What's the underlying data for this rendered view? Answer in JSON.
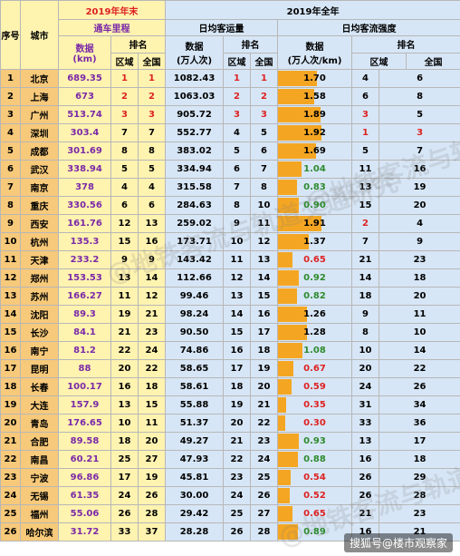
{
  "headers": {
    "idx": "序号",
    "city": "城市",
    "group_2019_end": "2019年年末",
    "mileage": "通车里程",
    "mileage_data": "数据\n(km)",
    "rank": "排名",
    "region": "区域",
    "nation": "全国",
    "group_2019_full": "2019年全年",
    "daily_flow": "日均客运量",
    "flow_data": "数据\n(万人次)",
    "density": "日均客流强度",
    "density_data": "数据\n(万人次/km)"
  },
  "rows": [
    {
      "idx": "1",
      "city": "北京",
      "mileage": "689.35",
      "mr": "1",
      "mn": "1",
      "flow": "1082.43",
      "fr": "1",
      "fn": "1",
      "dens": "1.70",
      "dens_num": 1.7,
      "dr": "4",
      "dn": "6"
    },
    {
      "idx": "2",
      "city": "上海",
      "mileage": "673",
      "mr": "2",
      "mn": "2",
      "flow": "1063.03",
      "fr": "2",
      "fn": "2",
      "dens": "1.58",
      "dens_num": 1.58,
      "dr": "6",
      "dn": "8"
    },
    {
      "idx": "3",
      "city": "广州",
      "mileage": "513.74",
      "mr": "3",
      "mn": "3",
      "flow": "905.72",
      "fr": "3",
      "fn": "3",
      "dens": "1.89",
      "dens_num": 1.89,
      "dr": "3",
      "dn": "5"
    },
    {
      "idx": "4",
      "city": "深圳",
      "mileage": "303.4",
      "mr": "7",
      "mn": "7",
      "flow": "552.77",
      "fr": "4",
      "fn": "5",
      "dens": "1.92",
      "dens_num": 1.92,
      "dr": "1",
      "dn": "3"
    },
    {
      "idx": "5",
      "city": "成都",
      "mileage": "301.69",
      "mr": "8",
      "mn": "8",
      "flow": "383.02",
      "fr": "5",
      "fn": "6",
      "dens": "1.69",
      "dens_num": 1.69,
      "dr": "5",
      "dn": "7"
    },
    {
      "idx": "6",
      "city": "武汉",
      "mileage": "338.94",
      "mr": "5",
      "mn": "5",
      "flow": "334.94",
      "fr": "6",
      "fn": "7",
      "dens": "1.04",
      "dens_num": 1.04,
      "dr": "11",
      "dn": "16"
    },
    {
      "idx": "7",
      "city": "南京",
      "mileage": "378",
      "mr": "4",
      "mn": "4",
      "flow": "315.58",
      "fr": "7",
      "fn": "8",
      "dens": "0.83",
      "dens_num": 0.83,
      "dr": "13",
      "dn": "19"
    },
    {
      "idx": "8",
      "city": "重庆",
      "mileage": "330.56",
      "mr": "6",
      "mn": "6",
      "flow": "284.63",
      "fr": "8",
      "fn": "10",
      "dens": "0.90",
      "dens_num": 0.9,
      "dr": "15",
      "dn": "20"
    },
    {
      "idx": "9",
      "city": "西安",
      "mileage": "161.76",
      "mr": "12",
      "mn": "13",
      "flow": "259.02",
      "fr": "9",
      "fn": "11",
      "dens": "1.91",
      "dens_num": 1.91,
      "dr": "2",
      "dn": "4"
    },
    {
      "idx": "10",
      "city": "杭州",
      "mileage": "135.3",
      "mr": "15",
      "mn": "16",
      "flow": "173.71",
      "fr": "10",
      "fn": "12",
      "dens": "1.37",
      "dens_num": 1.37,
      "dr": "7",
      "dn": "9"
    },
    {
      "idx": "11",
      "city": "天津",
      "mileage": "233.2",
      "mr": "9",
      "mn": "9",
      "flow": "143.42",
      "fr": "11",
      "fn": "13",
      "dens": "0.65",
      "dens_num": 0.65,
      "dr": "21",
      "dn": "23"
    },
    {
      "idx": "12",
      "city": "郑州",
      "mileage": "153.53",
      "mr": "13",
      "mn": "14",
      "flow": "112.66",
      "fr": "12",
      "fn": "14",
      "dens": "0.92",
      "dens_num": 0.92,
      "dr": "14",
      "dn": "18"
    },
    {
      "idx": "13",
      "city": "苏州",
      "mileage": "166.27",
      "mr": "11",
      "mn": "12",
      "flow": "99.46",
      "fr": "13",
      "fn": "15",
      "dens": "0.82",
      "dens_num": 0.82,
      "dr": "18",
      "dn": "20"
    },
    {
      "idx": "14",
      "city": "沈阳",
      "mileage": "89.3",
      "mr": "19",
      "mn": "21",
      "flow": "98.24",
      "fr": "14",
      "fn": "16",
      "dens": "1.26",
      "dens_num": 1.26,
      "dr": "9",
      "dn": "11"
    },
    {
      "idx": "15",
      "city": "长沙",
      "mileage": "84.1",
      "mr": "21",
      "mn": "23",
      "flow": "90.50",
      "fr": "15",
      "fn": "17",
      "dens": "1.28",
      "dens_num": 1.28,
      "dr": "8",
      "dn": "10"
    },
    {
      "idx": "16",
      "city": "南宁",
      "mileage": "81.2",
      "mr": "22",
      "mn": "24",
      "flow": "74.86",
      "fr": "16",
      "fn": "18",
      "dens": "1.08",
      "dens_num": 1.08,
      "dr": "10",
      "dn": "14"
    },
    {
      "idx": "17",
      "city": "昆明",
      "mileage": "88",
      "mr": "20",
      "mn": "22",
      "flow": "58.65",
      "fr": "17",
      "fn": "19",
      "dens": "0.67",
      "dens_num": 0.67,
      "dr": "20",
      "dn": "22"
    },
    {
      "idx": "18",
      "city": "长春",
      "mileage": "100.17",
      "mr": "16",
      "mn": "18",
      "flow": "58.61",
      "fr": "18",
      "fn": "20",
      "dens": "0.59",
      "dens_num": 0.59,
      "dr": "24",
      "dn": "26"
    },
    {
      "idx": "19",
      "city": "大连",
      "mileage": "157.9",
      "mr": "13",
      "mn": "15",
      "flow": "55.88",
      "fr": "19",
      "fn": "21",
      "dens": "0.35",
      "dens_num": 0.35,
      "dr": "31",
      "dn": "34"
    },
    {
      "idx": "20",
      "city": "青岛",
      "mileage": "176.65",
      "mr": "10",
      "mn": "11",
      "flow": "51.37",
      "fr": "20",
      "fn": "22",
      "dens": "0.30",
      "dens_num": 0.3,
      "dr": "33",
      "dn": "36"
    },
    {
      "idx": "21",
      "city": "合肥",
      "mileage": "89.58",
      "mr": "18",
      "mn": "20",
      "flow": "49.27",
      "fr": "21",
      "fn": "23",
      "dens": "0.93",
      "dens_num": 0.93,
      "dr": "13",
      "dn": "17"
    },
    {
      "idx": "22",
      "city": "南昌",
      "mileage": "60.21",
      "mr": "25",
      "mn": "27",
      "flow": "47.93",
      "fr": "22",
      "fn": "24",
      "dens": "0.88",
      "dens_num": 0.88,
      "dr": "16",
      "dn": "18"
    },
    {
      "idx": "23",
      "city": "宁波",
      "mileage": "96.86",
      "mr": "17",
      "mn": "19",
      "flow": "45.81",
      "fr": "23",
      "fn": "25",
      "dens": "0.54",
      "dens_num": 0.54,
      "dr": "26",
      "dn": "29"
    },
    {
      "idx": "24",
      "city": "无锡",
      "mileage": "61.35",
      "mr": "24",
      "mn": "26",
      "flow": "30.00",
      "fr": "24",
      "fn": "26",
      "dens": "0.52",
      "dens_num": 0.52,
      "dr": "26",
      "dn": "28"
    },
    {
      "idx": "25",
      "city": "福州",
      "mileage": "55.06",
      "mr": "26",
      "mn": "28",
      "flow": "29.42",
      "fr": "25",
      "fn": "27",
      "dens": "0.65",
      "dens_num": 0.65,
      "dr": "21",
      "dn": "23"
    },
    {
      "idx": "26",
      "city": "哈尔滨",
      "mileage": "31.72",
      "mr": "33",
      "mn": "37",
      "flow": "28.28",
      "fr": "26",
      "fn": "28",
      "dens": "0.89",
      "dens_num": 0.89,
      "dr": "16",
      "dn": "21"
    }
  ],
  "watermark_text": "@地铁客流与轨道交通研究",
  "credit": "搜狐号@楼市观察家",
  "colors": {
    "bar": "#f4a623",
    "yellow": "#fff3b0",
    "blue": "#d7e6f6",
    "city": "#f7c97a",
    "red": "#d22",
    "green": "#2e8b2e",
    "purple": "#7a2aa8"
  }
}
